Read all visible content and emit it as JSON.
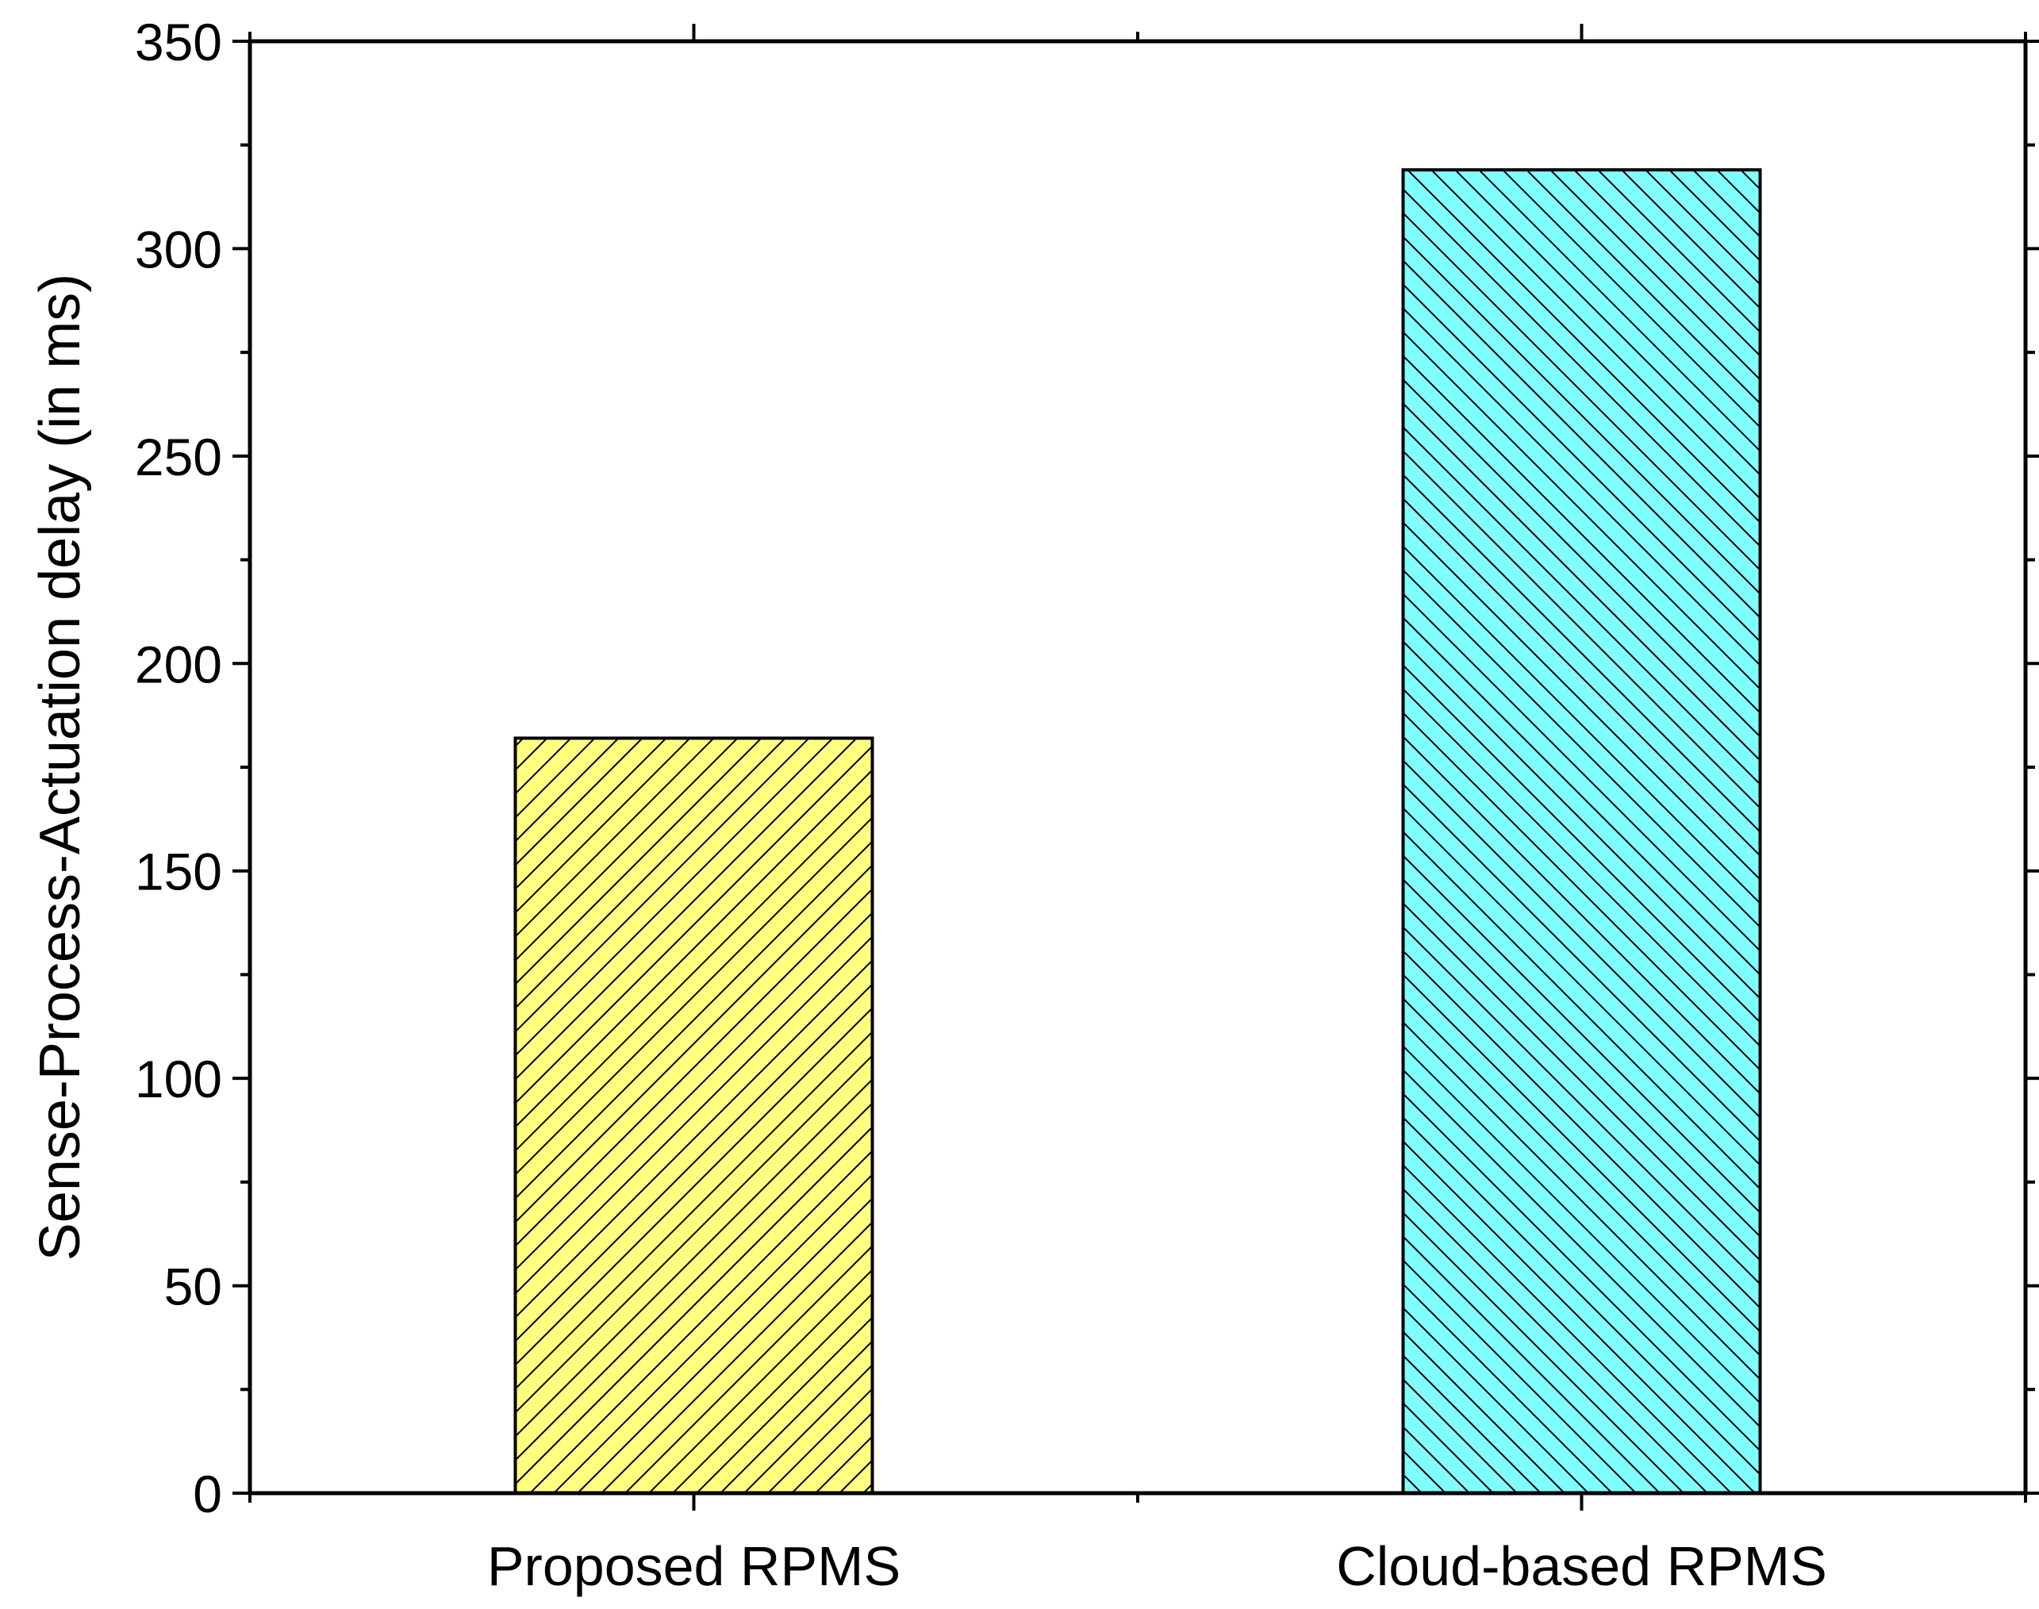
{
  "chart_data": {
    "type": "bar",
    "title": "",
    "xlabel": "",
    "ylabel": "Sense-Process-Actuation delay (in ms)",
    "categories": [
      "Proposed RPMS",
      "Cloud-based RPMS"
    ],
    "values": [
      182,
      319
    ],
    "ylim": [
      0,
      350
    ],
    "yticks": [
      0,
      50,
      100,
      150,
      200,
      250,
      300,
      350
    ],
    "grid": false,
    "legend": "none",
    "bar_colors": [
      "#ffff80",
      "#80ffff"
    ],
    "bar_hatch": [
      "diagonal-up",
      "diagonal-down"
    ]
  }
}
